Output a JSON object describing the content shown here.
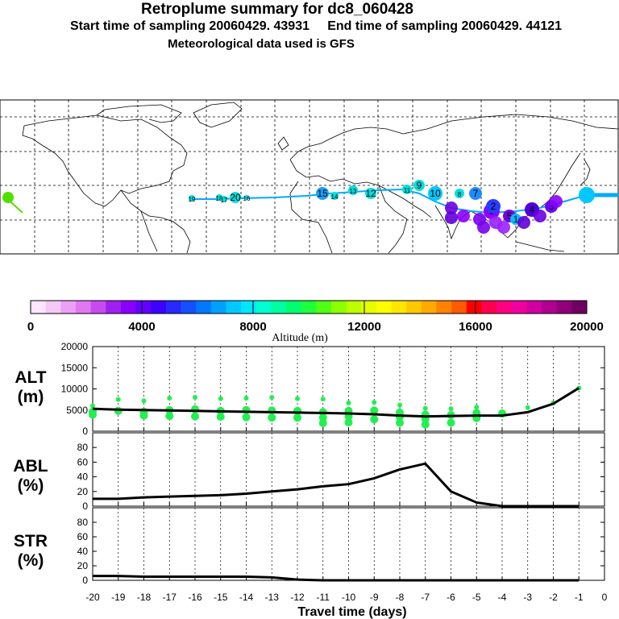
{
  "header": {
    "title": "Retroplume summary for dc8_060428",
    "sampling_line": "Start time of sampling 20060429. 43931     End time of sampling 20060429. 44121",
    "met_line": "Meteorological data used is GFS"
  },
  "map": {
    "description_free": true,
    "markers": [
      {
        "label": "19",
        "color": "#00e0e0"
      },
      {
        "label": "18",
        "color": "#00e0e0"
      },
      {
        "label": "20",
        "color": "#00e0e0"
      },
      {
        "label": "17",
        "color": "#00e0e0"
      },
      {
        "label": "16",
        "color": "#00e0e0"
      },
      {
        "label": "15",
        "color": "#1aa0ff"
      },
      {
        "label": "14",
        "color": "#00e0e0"
      },
      {
        "label": "13",
        "color": "#00e0e0"
      },
      {
        "label": "12",
        "color": "#00e0e0"
      },
      {
        "label": "11",
        "color": "#00e0e0"
      },
      {
        "label": "10",
        "color": "#00c8ff"
      },
      {
        "label": "9",
        "color": "#00e0e0"
      },
      {
        "label": "8",
        "color": "#00e0e0"
      },
      {
        "label": "7",
        "color": "#1e8cff"
      },
      {
        "label": "6",
        "color": "#9000ff"
      },
      {
        "label": "5",
        "color": "#7a00e0"
      },
      {
        "label": "4",
        "color": "#5000e0"
      },
      {
        "label": "3",
        "color": "#7000ff"
      },
      {
        "label": "2",
        "color": "#2a3cff"
      },
      {
        "label": "1",
        "color": "#00c0ff"
      }
    ]
  },
  "colorbar": {
    "tick_labels": [
      "0",
      "4000",
      "8000",
      "12000",
      "16000",
      "20000"
    ],
    "label": "Altitude (m)",
    "colors": [
      "#ffe6ff",
      "#f5c8f5",
      "#eba0f5",
      "#e078f0",
      "#c84bf0",
      "#a020f0",
      "#8a00ff",
      "#6400ff",
      "#3c00ff",
      "#2828ff",
      "#1450ff",
      "#0078ff",
      "#00a0ff",
      "#00c8ff",
      "#00e6ff",
      "#00ffd2",
      "#00ffa0",
      "#00ff6e",
      "#1eff3c",
      "#50ff14",
      "#8cff00",
      "#beff00",
      "#e6ff00",
      "#ffff00",
      "#ffe600",
      "#ffc800",
      "#ffaa00",
      "#ff8200",
      "#ff5a00",
      "#ff0000",
      "#ff0050",
      "#ff0082",
      "#f000a0",
      "#d000a0",
      "#b00090",
      "#900078",
      "#700060"
    ]
  },
  "chart_data": [
    {
      "type": "line",
      "name": "ALT",
      "ylabel": "ALT\n(m)",
      "ylabel_line1": "ALT",
      "ylabel_line2": "(m)",
      "ylim": [
        0,
        20000
      ],
      "yticks": [
        "20000",
        "15000",
        "10000",
        "5000",
        "0"
      ],
      "x": [
        -20,
        -19,
        -18,
        -17,
        -16,
        -15,
        -14,
        -13,
        -12,
        -11,
        -10,
        -9,
        -8,
        -7,
        -6,
        -5,
        -4,
        -3,
        -2,
        -1
      ],
      "values": [
        5300,
        5100,
        5000,
        4900,
        4800,
        4700,
        4600,
        4500,
        4400,
        4300,
        4200,
        4000,
        3700,
        3500,
        3600,
        3700,
        3700,
        4500,
        6500,
        10200
      ],
      "point_series": [
        [
          6000,
          4600,
          3900
        ],
        [
          7500,
          4800
        ],
        [
          7200,
          4600,
          3700
        ],
        [
          7800,
          5000,
          3600
        ],
        [
          8000,
          5200,
          3500
        ],
        [
          7700,
          4800,
          3400
        ],
        [
          7800,
          5000,
          3300
        ],
        [
          8000,
          4900,
          3200
        ],
        [
          7700,
          4800,
          3200
        ],
        [
          7600,
          4500,
          3200,
          1900
        ],
        [
          6700,
          4800,
          3500,
          2100
        ],
        [
          6800,
          4900,
          2800
        ],
        [
          6200,
          4400,
          3400,
          2000
        ],
        [
          5400,
          3900,
          2900,
          1600
        ],
        [
          5300,
          3800,
          2000
        ],
        [
          5700,
          4300,
          3100
        ],
        [
          3800,
          4200
        ],
        [
          5600
        ],
        [
          6700
        ],
        [
          10200
        ]
      ],
      "point_color": "#20f050",
      "x_tick_labels": [
        "-20",
        "-19",
        "-18",
        "-17",
        "-16",
        "-15",
        "-14",
        "-13",
        "-12",
        "-11",
        "-10",
        "-9",
        "-8",
        "-7",
        "-6",
        "-5",
        "-4",
        "-3",
        "-2",
        "-1",
        "0"
      ]
    },
    {
      "type": "line",
      "name": "ABL",
      "ylabel_line1": "ABL",
      "ylabel_line2": "(%)",
      "ylim": [
        0,
        100
      ],
      "yticks": [
        "80",
        "60",
        "40",
        "20",
        "0"
      ],
      "x": [
        -20,
        -19,
        -18,
        -17,
        -16,
        -15,
        -14,
        -13,
        -12,
        -11,
        -10,
        -9,
        -8,
        -7,
        -6,
        -5,
        -4,
        -3,
        -2,
        -1
      ],
      "values": [
        10,
        10,
        12,
        13,
        14,
        15,
        17,
        20,
        23,
        27,
        30,
        38,
        50,
        58,
        20,
        5,
        0,
        0,
        0,
        0
      ]
    },
    {
      "type": "line",
      "name": "STR",
      "ylabel_line1": "STR",
      "ylabel_line2": "(%)",
      "ylim": [
        0,
        100
      ],
      "yticks": [
        "80",
        "60",
        "40",
        "20",
        "0"
      ],
      "x": [
        -20,
        -19,
        -18,
        -17,
        -16,
        -15,
        -14,
        -13,
        -12,
        -11,
        -10,
        -9,
        -8,
        -7,
        -6,
        -5,
        -4,
        -3,
        -2,
        -1
      ],
      "values": [
        6,
        6,
        5,
        5,
        5,
        5,
        5,
        4,
        1,
        0,
        0,
        0,
        0,
        0,
        0,
        0,
        0,
        0,
        0,
        0
      ],
      "xlabel": "Travel time (days)"
    }
  ]
}
